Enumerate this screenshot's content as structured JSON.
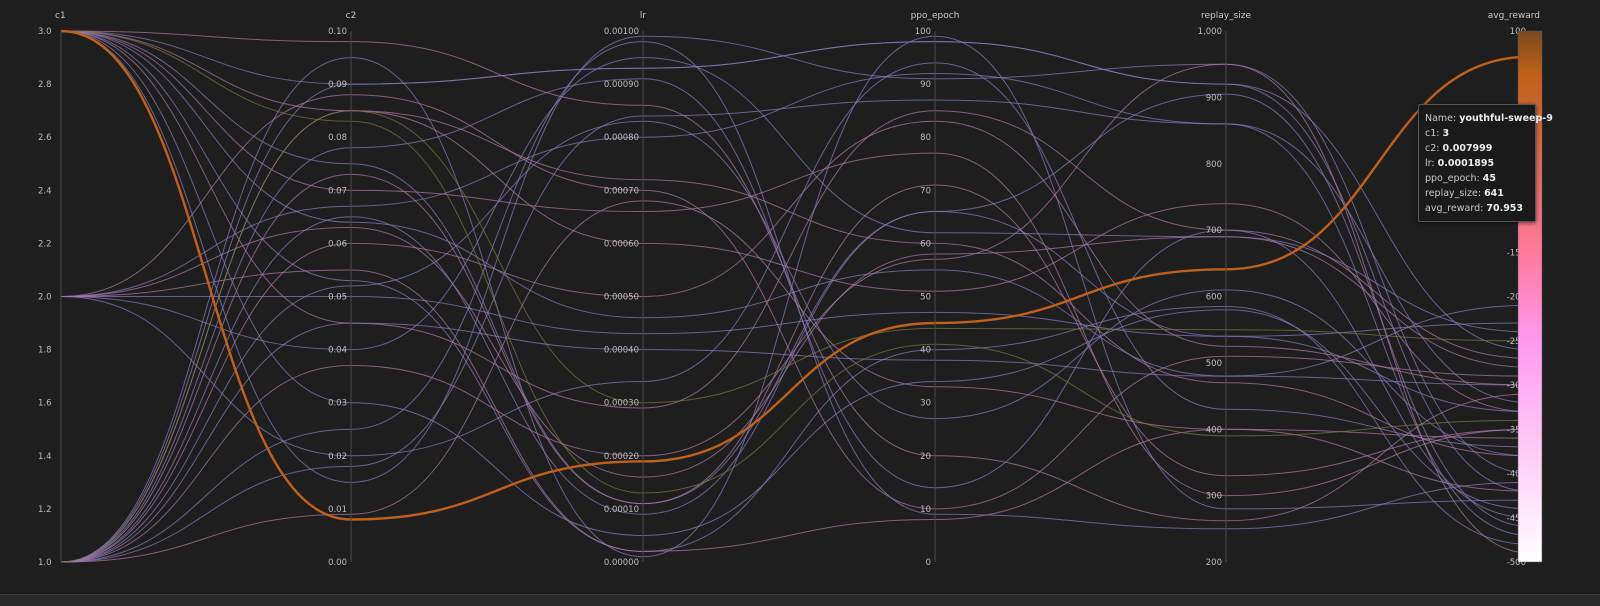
{
  "colors": {
    "background": "#1e1e1e",
    "axis_line": "#4a4a4a",
    "highlight": "#c0601a",
    "line_purple": "#8a7dc0",
    "line_pink": "#b07aa8",
    "line_olive": "#7a7a40"
  },
  "tooltip": {
    "name_label": "Name:",
    "name_value": "youthful-sweep-9",
    "c1_label": "c1:",
    "c1_value": "3",
    "c2_label": "c2:",
    "c2_value": "0.007999",
    "lr_label": "lr:",
    "lr_value": "0.0001895",
    "ppo_epoch_label": "ppo_epoch:",
    "ppo_epoch_value": "45",
    "replay_size_label": "replay_size:",
    "replay_size_value": "641",
    "avg_reward_label": "avg_reward:",
    "avg_reward_value": "70.953"
  },
  "chart_data": {
    "type": "parallel_coordinates",
    "axes": [
      {
        "name": "c1",
        "min": 1.0,
        "max": 3.0,
        "ticks": [
          {
            "v": 1.0,
            "label": "1.0"
          },
          {
            "v": 1.2,
            "label": "1.2"
          },
          {
            "v": 1.4,
            "label": "1.4"
          },
          {
            "v": 1.6,
            "label": "1.6"
          },
          {
            "v": 1.8,
            "label": "1.8"
          },
          {
            "v": 2.0,
            "label": "2.0"
          },
          {
            "v": 2.2,
            "label": "2.2"
          },
          {
            "v": 2.4,
            "label": "2.4"
          },
          {
            "v": 2.6,
            "label": "2.6"
          },
          {
            "v": 2.8,
            "label": "2.8"
          },
          {
            "v": 3.0,
            "label": "3.0"
          }
        ]
      },
      {
        "name": "c2",
        "min": 0.0,
        "max": 0.1,
        "ticks": [
          {
            "v": 0.0,
            "label": "0.00"
          },
          {
            "v": 0.01,
            "label": "0.01"
          },
          {
            "v": 0.02,
            "label": "0.02"
          },
          {
            "v": 0.03,
            "label": "0.03"
          },
          {
            "v": 0.04,
            "label": "0.04"
          },
          {
            "v": 0.05,
            "label": "0.05"
          },
          {
            "v": 0.06,
            "label": "0.06"
          },
          {
            "v": 0.07,
            "label": "0.07"
          },
          {
            "v": 0.08,
            "label": "0.08"
          },
          {
            "v": 0.09,
            "label": "0.09"
          },
          {
            "v": 0.1,
            "label": "0.10"
          }
        ]
      },
      {
        "name": "lr",
        "min": 0.0,
        "max": 0.001,
        "ticks": [
          {
            "v": 0.0,
            "label": "0.00000"
          },
          {
            "v": 0.0001,
            "label": "0.00010"
          },
          {
            "v": 0.0002,
            "label": "0.00020"
          },
          {
            "v": 0.0003,
            "label": "0.00030"
          },
          {
            "v": 0.0004,
            "label": "0.00040"
          },
          {
            "v": 0.0005,
            "label": "0.00050"
          },
          {
            "v": 0.0006,
            "label": "0.00060"
          },
          {
            "v": 0.0007,
            "label": "0.00070"
          },
          {
            "v": 0.0008,
            "label": "0.00080"
          },
          {
            "v": 0.0009,
            "label": "0.00090"
          },
          {
            "v": 0.001,
            "label": "0.00100"
          }
        ]
      },
      {
        "name": "ppo_epoch",
        "min": 0,
        "max": 100,
        "ticks": [
          {
            "v": 0,
            "label": "0"
          },
          {
            "v": 10,
            "label": "10"
          },
          {
            "v": 20,
            "label": "20"
          },
          {
            "v": 30,
            "label": "30"
          },
          {
            "v": 40,
            "label": "40"
          },
          {
            "v": 50,
            "label": "50"
          },
          {
            "v": 60,
            "label": "60"
          },
          {
            "v": 70,
            "label": "70"
          },
          {
            "v": 80,
            "label": "80"
          },
          {
            "v": 90,
            "label": "90"
          },
          {
            "v": 100,
            "label": "100"
          }
        ]
      },
      {
        "name": "replay_size",
        "min": 200,
        "max": 1000,
        "ticks": [
          {
            "v": 200,
            "label": "200"
          },
          {
            "v": 300,
            "label": "300"
          },
          {
            "v": 400,
            "label": "400"
          },
          {
            "v": 500,
            "label": "500"
          },
          {
            "v": 600,
            "label": "600"
          },
          {
            "v": 700,
            "label": "700"
          },
          {
            "v": 800,
            "label": "800"
          },
          {
            "v": 900,
            "label": "900"
          },
          {
            "v": 1000,
            "label": "1,000"
          }
        ]
      },
      {
        "name": "avg_reward",
        "min": -500,
        "max": 100,
        "ticks": [
          {
            "v": -500,
            "label": "-500"
          },
          {
            "v": -450,
            "label": "-450"
          },
          {
            "v": -400,
            "label": "-400"
          },
          {
            "v": -350,
            "label": "-350"
          },
          {
            "v": -300,
            "label": "-300"
          },
          {
            "v": -250,
            "label": "-250"
          },
          {
            "v": -200,
            "label": "-200"
          },
          {
            "v": -150,
            "label": "-150"
          },
          {
            "v": 100,
            "label": "100"
          }
        ]
      }
    ],
    "colorbar": {
      "axis": "avg_reward",
      "stops": [
        {
          "v": 100,
          "color": "#7a4a1e"
        },
        {
          "v": 50,
          "color": "#c0601a"
        },
        {
          "v": -150,
          "color": "#ff7a9c"
        },
        {
          "v": -250,
          "color": "#ff99ee"
        },
        {
          "v": -500,
          "color": "#ffffff"
        }
      ]
    },
    "highlighted_run": {
      "name": "youthful-sweep-9",
      "values": [
        3,
        0.007999,
        0.0001895,
        45,
        641,
        70.953
      ]
    },
    "runs": [
      {
        "values": [
          3,
          0.09,
          0.00093,
          98,
          920,
          -420
        ],
        "color": "purple"
      },
      {
        "values": [
          3,
          0.085,
          0.00072,
          60,
          470,
          -380
        ],
        "color": "pink"
      },
      {
        "values": [
          3,
          0.075,
          0.00011,
          66,
          905,
          -460
        ],
        "color": "purple"
      },
      {
        "values": [
          3,
          0.07,
          0.00066,
          77,
          300,
          -350
        ],
        "color": "pink"
      },
      {
        "values": [
          3,
          0.064,
          0.00046,
          55,
          480,
          -300
        ],
        "color": "purple"
      },
      {
        "values": [
          3,
          0.053,
          2e-05,
          40,
          585,
          -480
        ],
        "color": "purple"
      },
      {
        "values": [
          3,
          0.045,
          0.00029,
          85,
          700,
          -270
        ],
        "color": "pink"
      },
      {
        "values": [
          3,
          0.03,
          5e-05,
          34,
          580,
          -440
        ],
        "color": "purple"
      },
      {
        "values": [
          3,
          0.098,
          0.00086,
          20,
          262,
          -310
        ],
        "color": "pink"
      },
      {
        "values": [
          3,
          0.015,
          0.00099,
          91,
          950,
          -400
        ],
        "color": "purple"
      },
      {
        "values": [
          2,
          0.05,
          0.00043,
          47,
          540,
          -330
        ],
        "color": "purple"
      },
      {
        "values": [
          2,
          0.055,
          2e-05,
          8,
          400,
          -420
        ],
        "color": "pink"
      },
      {
        "values": [
          2,
          0.067,
          0.0008,
          92,
          860,
          -470
        ],
        "color": "purple"
      },
      {
        "values": [
          2,
          0.063,
          0.00016,
          58,
          690,
          -280
        ],
        "color": "pink"
      },
      {
        "values": [
          2,
          0.04,
          0.00095,
          62,
          690,
          -240
        ],
        "color": "purple"
      },
      {
        "values": [
          2,
          0.02,
          0.00034,
          94,
          430,
          -370
        ],
        "color": "purple"
      },
      {
        "values": [
          2,
          0.088,
          0.0007,
          10,
          510,
          -290
        ],
        "color": "pink"
      },
      {
        "values": [
          1,
          0.09,
          0.00093,
          98,
          920,
          -260
        ],
        "color": "purple"
      },
      {
        "values": [
          1,
          0.095,
          1e-05,
          99,
          280,
          -430
        ],
        "color": "purple"
      },
      {
        "values": [
          1,
          0.085,
          0.0006,
          51,
          740,
          -330
        ],
        "color": "pink"
      },
      {
        "values": [
          1,
          0.078,
          0.00091,
          14,
          700,
          -450
        ],
        "color": "purple"
      },
      {
        "values": [
          1,
          0.073,
          0.00011,
          71,
          330,
          -350
        ],
        "color": "pink"
      },
      {
        "values": [
          1,
          0.065,
          9e-05,
          66,
          540,
          -230
        ],
        "color": "purple"
      },
      {
        "values": [
          1,
          0.06,
          0.0005,
          83,
          525,
          -300
        ],
        "color": "pink"
      },
      {
        "values": [
          1,
          0.052,
          0.00083,
          27,
          610,
          -380
        ],
        "color": "purple"
      },
      {
        "values": [
          1,
          0.045,
          0.0004,
          38,
          480,
          -210
        ],
        "color": "purple"
      },
      {
        "values": [
          1,
          0.037,
          0.0002,
          57,
          950,
          -490
        ],
        "color": "pink"
      },
      {
        "values": [
          1,
          0.025,
          0.00098,
          9,
          250,
          -410
        ],
        "color": "purple"
      },
      {
        "values": [
          1,
          0.018,
          0.00084,
          87,
          860,
          -320
        ],
        "color": "purple"
      },
      {
        "values": [
          1,
          0.009,
          0.00068,
          33,
          400,
          -360
        ],
        "color": "pink"
      },
      {
        "values": [
          1,
          0.085,
          0.0003,
          44,
          550,
          -250
        ],
        "color": "olive"
      },
      {
        "values": [
          3,
          0.083,
          0.00013,
          41,
          390,
          -340
        ],
        "color": "olive"
      }
    ]
  }
}
